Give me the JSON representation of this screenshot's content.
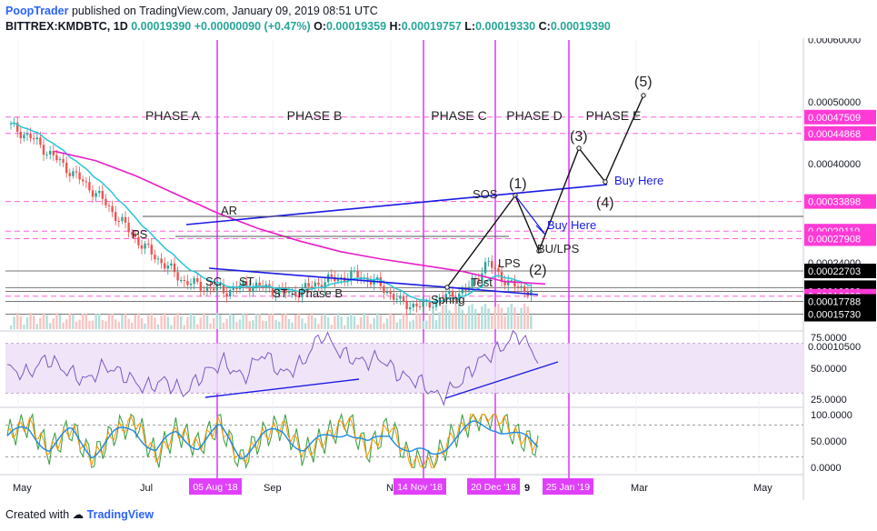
{
  "header": {
    "author": "PoopTrader",
    "published": "published on TradingView.com, January 09, 2019 08:51 UTC",
    "symbol": "BITTREX:KMDBTC, 1D",
    "last": "0.00019390",
    "change": "+0.00000090 (+0.47%)",
    "open_label": "O:",
    "open": "0.00019359",
    "high_label": "H:",
    "high": "0.00019757",
    "low_label": "L:",
    "low": "0.00019330",
    "close_label": "C:",
    "close": "0.00019390"
  },
  "footer": {
    "created_with": "Created with",
    "brand": "TradingView"
  },
  "colors": {
    "phase_line": "#e040fb",
    "candle_up": "#26a69a",
    "candle_down": "#ef5350",
    "ema_fast": "#26c6da",
    "ma_slow": "#e91ec8",
    "trendline": "#1a1ae6",
    "rsi": "#7e57c2",
    "stoch_k": "#1e88e5",
    "stoch_d": "#ff9800",
    "osc": "#43a047"
  },
  "chart_data": [
    {
      "type": "candlestick",
      "title": "",
      "x_tick_labels": [
        "May",
        "Jul",
        "Sep",
        "N",
        "9",
        "Mar",
        "May"
      ],
      "x_highlight_labels": [
        "05 Aug '18",
        "14 Nov '18",
        "20 Dec '18",
        "25 Jan '19"
      ],
      "ylim": [
        9.5e-05,
        0.000625
      ],
      "y_tick_labels": [
        "0.00060000",
        "0.00050000",
        "0.00040000",
        "0.00024000",
        "0.00010500"
      ],
      "y_tick_values": [
        0.0006,
        0.0005,
        0.0004,
        0.00024,
        0.000105
      ],
      "price_levels": [
        {
          "label": "0.00047509",
          "value": 0.00047509,
          "style": "pink"
        },
        {
          "label": "0.00044868",
          "value": 0.00044868,
          "style": "pink"
        },
        {
          "label": "0.00033898",
          "value": 0.00033898,
          "style": "pink"
        },
        {
          "label": "0.00029119",
          "value": 0.00029119,
          "style": "pink"
        },
        {
          "label": "0.00027908",
          "value": 0.00027908,
          "style": "pink"
        },
        {
          "label": "0.00022703",
          "value": 0.00022703,
          "style": "black"
        },
        {
          "label": "0.00019997",
          "value": 0.00019997,
          "style": "black"
        },
        {
          "label": "0.00019390",
          "value": 0.0001939,
          "style": "black"
        },
        {
          "label": "0.00018632",
          "value": 0.00018632,
          "style": "pink"
        },
        {
          "label": "0.00017788",
          "value": 0.00017788,
          "style": "black"
        },
        {
          "label": "0.00015730",
          "value": 0.0001573,
          "style": "black"
        }
      ],
      "phases": [
        "PHASE A",
        "PHASE B",
        "PHASE C",
        "PHASE D",
        "PHASE E"
      ],
      "annotations": [
        "PS",
        "AR",
        "SC",
        "ST",
        "ST - Phase B",
        "Spring",
        "Test",
        "LPS",
        "SOS",
        "BU/LPS",
        "(1)",
        "(2)",
        "(3)",
        "(4)",
        "(5)",
        "Buy Here",
        "Buy Here"
      ],
      "series": [
        {
          "name": "",
          "kind": "close_path",
          "values": [
            0.00046,
            0.00044,
            0.00041,
            0.00038,
            0.00035,
            0.00031,
            0.00027,
            0.00024,
            0.00021,
            0.0002,
            0.000195,
            0.000205,
            0.000198,
            0.00019,
            0.000205,
            0.000215,
            0.00022,
            0.000205,
            0.000175,
            0.00017,
            0.000185,
            0.000195,
            0.00024,
            0.000205,
            0.000195
          ]
        },
        {
          "name": "",
          "kind": "moving_average",
          "values": [
            0.00042,
            0.000405,
            0.00038,
            0.00035,
            0.00032,
            0.000295,
            0.000275,
            0.000258,
            0.000246,
            0.000236,
            0.000226,
            0.00021,
            0.000206
          ]
        }
      ],
      "projection": {
        "labels": [
          "(2)",
          "(3)",
          "(4)",
          "(5)"
        ],
        "values": [
          0.000192,
          0.00034,
          0.00028,
          0.00047
        ]
      }
    },
    {
      "type": "line",
      "title": "",
      "y_tick_labels": [
        "75.0000",
        "50.0000",
        "25.0000"
      ],
      "ylim": [
        20,
        80
      ],
      "band": [
        30,
        70
      ],
      "values": [
        50,
        45,
        58,
        48,
        40,
        52,
        44,
        34,
        40,
        30,
        46,
        55,
        42,
        63,
        45,
        54,
        78,
        62,
        55,
        58,
        44,
        39,
        26,
        38,
        56,
        65,
        78,
        58
      ]
    },
    {
      "type": "line",
      "title": "",
      "y_tick_labels": [
        "100.0000",
        "50.0000",
        "0.0000"
      ],
      "ylim": [
        -10,
        110
      ],
      "levels": [
        80,
        20
      ],
      "values": [
        60,
        85,
        30,
        75,
        15,
        65,
        90,
        20,
        70,
        40,
        85,
        10,
        60,
        80,
        25,
        55,
        90,
        30,
        80,
        10,
        5,
        60,
        95,
        100,
        60,
        40
      ]
    }
  ]
}
